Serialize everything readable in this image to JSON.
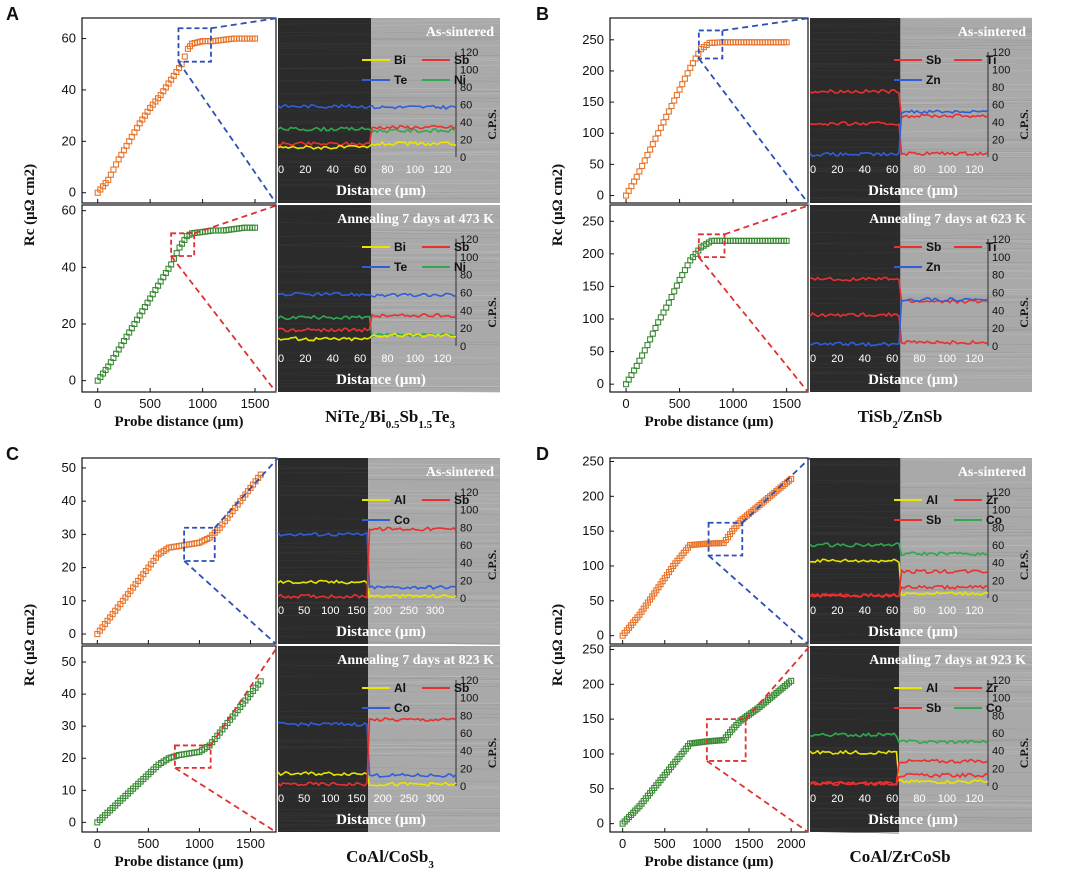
{
  "colors": {
    "as_sintered": "#e8742a",
    "annealed": "#3a8a35",
    "zoom_top": "#2e4fb5",
    "zoom_bottom": "#e03030",
    "Bi": "#e6e600",
    "Sb": "#e83030",
    "Te": "#2f5ed8",
    "Ni": "#2fa84f",
    "Ti": "#e83030",
    "Zn": "#2f5ed8",
    "Al": "#e6e600",
    "Co": "#2f5ed8",
    "Zr": "#e83030",
    "Co_green": "#2fa84f"
  },
  "chart_data": [
    {
      "panel": "A",
      "type": "scatter",
      "caption": "NiTe2/Bi0.5Sb1.5Te3",
      "xlabel": "Probe distance (μm)",
      "ylabel": "Rc (μΩ cm2)",
      "xlim": [
        -150,
        1700
      ],
      "xticks": [
        0,
        500,
        1000,
        1500
      ],
      "top": {
        "label": "As-sintered",
        "ylim": [
          -4,
          68
        ],
        "yticks": [
          0,
          20,
          40,
          60
        ],
        "points": [
          [
            0,
            0
          ],
          [
            100,
            5
          ],
          [
            200,
            13
          ],
          [
            300,
            20
          ],
          [
            400,
            27
          ],
          [
            500,
            33
          ],
          [
            600,
            38
          ],
          [
            700,
            44
          ],
          [
            800,
            50
          ],
          [
            860,
            56
          ],
          [
            900,
            58
          ],
          [
            1000,
            59
          ],
          [
            1100,
            59
          ],
          [
            1200,
            59.5
          ],
          [
            1300,
            60
          ],
          [
            1400,
            60
          ],
          [
            1500,
            60
          ]
        ],
        "zoom": [
          770,
          1080,
          51,
          64
        ],
        "map": {
          "x_max": 130,
          "xticks": [
            0,
            20,
            40,
            60,
            80,
            100,
            120
          ],
          "interface": 68,
          "cps_ticks": [
            0,
            20,
            40,
            60,
            80,
            100,
            120
          ],
          "legend": [
            "Bi",
            "Sb",
            "Te",
            "Ni"
          ],
          "lines": [
            {
              "el": "Te",
              "left": 58,
              "right": 57
            },
            {
              "el": "Ni",
              "left": 32,
              "right": 30
            },
            {
              "el": "Sb",
              "left": 15,
              "right": 34
            },
            {
              "el": "Bi",
              "left": 11,
              "right": 15
            }
          ]
        }
      },
      "bottom": {
        "label": "Annealing 7 days at 473 K",
        "ylim": [
          -4,
          62
        ],
        "yticks": [
          0,
          20,
          40,
          60
        ],
        "points": [
          [
            0,
            0
          ],
          [
            100,
            5
          ],
          [
            200,
            11
          ],
          [
            300,
            17
          ],
          [
            400,
            23
          ],
          [
            500,
            29
          ],
          [
            600,
            35
          ],
          [
            700,
            41
          ],
          [
            780,
            47
          ],
          [
            850,
            51
          ],
          [
            900,
            52
          ],
          [
            1000,
            52.5
          ],
          [
            1100,
            53
          ],
          [
            1200,
            53
          ],
          [
            1300,
            53.5
          ],
          [
            1400,
            54
          ],
          [
            1500,
            54
          ]
        ],
        "zoom": [
          700,
          920,
          44,
          52
        ],
        "map": {
          "x_max": 130,
          "xticks": [
            0,
            20,
            40,
            60,
            80,
            100,
            120
          ],
          "interface": 68,
          "cps_ticks": [
            0,
            20,
            40,
            60,
            80,
            100,
            120
          ],
          "legend": [
            "Bi",
            "Sb",
            "Te",
            "Ni"
          ],
          "lines": [
            {
              "el": "Te",
              "left": 58,
              "right": 57
            },
            {
              "el": "Ni",
              "left": 32,
              "right": 12
            },
            {
              "el": "Sb",
              "left": 18,
              "right": 34
            },
            {
              "el": "Bi",
              "left": 8,
              "right": 12
            }
          ]
        }
      }
    },
    {
      "panel": "B",
      "type": "scatter",
      "caption": "TiSb2/ZnSb",
      "xlabel": "Probe distance (μm)",
      "ylabel": "Rc (μΩ cm2)",
      "xlim": [
        -150,
        1700
      ],
      "xticks": [
        0,
        500,
        1000,
        1500
      ],
      "top": {
        "label": "As-sintered",
        "ylim": [
          -12,
          285
        ],
        "yticks": [
          0,
          50,
          100,
          150,
          200,
          250
        ],
        "points": [
          [
            0,
            0
          ],
          [
            100,
            30
          ],
          [
            200,
            65
          ],
          [
            300,
            100
          ],
          [
            400,
            135
          ],
          [
            500,
            170
          ],
          [
            600,
            205
          ],
          [
            700,
            235
          ],
          [
            780,
            245
          ],
          [
            900,
            246
          ],
          [
            1000,
            246
          ],
          [
            1100,
            246
          ],
          [
            1200,
            246
          ],
          [
            1300,
            246
          ],
          [
            1400,
            246
          ],
          [
            1500,
            246
          ]
        ],
        "zoom": [
          680,
          900,
          220,
          265
        ],
        "map": {
          "x_max": 130,
          "xticks": [
            0,
            20,
            40,
            60,
            80,
            100,
            120
          ],
          "interface": 66,
          "cps_ticks": [
            0,
            20,
            40,
            60,
            80,
            100,
            120
          ],
          "legend": [
            "Sb",
            "Ti",
            "Zn"
          ],
          "lines": [
            {
              "el": "Sb",
              "left": 75,
              "right": 47
            },
            {
              "el": "Ti",
              "left": 38,
              "right": 4
            },
            {
              "el": "Zn",
              "left": 3,
              "right": 52
            }
          ]
        }
      },
      "bottom": {
        "label": "Annealing 7 days at 623 K",
        "ylim": [
          -12,
          275
        ],
        "yticks": [
          0,
          50,
          100,
          150,
          200,
          250
        ],
        "points": [
          [
            0,
            0
          ],
          [
            100,
            28
          ],
          [
            200,
            60
          ],
          [
            300,
            95
          ],
          [
            400,
            125
          ],
          [
            500,
            160
          ],
          [
            600,
            190
          ],
          [
            700,
            210
          ],
          [
            800,
            220
          ],
          [
            900,
            220
          ],
          [
            1000,
            220
          ],
          [
            1100,
            220
          ],
          [
            1200,
            220
          ],
          [
            1300,
            220
          ],
          [
            1400,
            220
          ],
          [
            1500,
            220
          ]
        ],
        "zoom": [
          680,
          920,
          195,
          230
        ],
        "map": {
          "x_max": 130,
          "xticks": [
            0,
            20,
            40,
            60,
            80,
            100,
            120
          ],
          "interface": 66,
          "cps_ticks": [
            0,
            20,
            40,
            60,
            80,
            100,
            120
          ],
          "legend": [
            "Sb",
            "Ti",
            "Zn"
          ],
          "lines": [
            {
              "el": "Sb",
              "left": 75,
              "right": 50
            },
            {
              "el": "Ti",
              "left": 35,
              "right": 4
            },
            {
              "el": "Zn",
              "left": 2,
              "right": 52
            }
          ]
        }
      }
    },
    {
      "panel": "C",
      "type": "scatter",
      "caption": "CoAl/CoSb3",
      "xlabel": "Probe distance (μm)",
      "ylabel": "Rc (μΩ cm2)",
      "xlim": [
        -150,
        1750
      ],
      "xticks": [
        0,
        500,
        1000,
        1500
      ],
      "top": {
        "label": "As-sintered",
        "ylim": [
          -3,
          53
        ],
        "yticks": [
          0,
          10,
          20,
          30,
          40,
          50
        ],
        "points": [
          [
            0,
            0
          ],
          [
            100,
            4
          ],
          [
            200,
            8
          ],
          [
            300,
            12
          ],
          [
            400,
            16
          ],
          [
            500,
            20
          ],
          [
            600,
            24
          ],
          [
            700,
            26
          ],
          [
            800,
            26.5
          ],
          [
            900,
            27
          ],
          [
            1000,
            27.5
          ],
          [
            1100,
            29
          ],
          [
            1200,
            32
          ],
          [
            1300,
            36
          ],
          [
            1400,
            40
          ],
          [
            1500,
            44
          ],
          [
            1600,
            48
          ]
        ],
        "zoom": [
          850,
          1150,
          22,
          32
        ],
        "map": {
          "x_max": 340,
          "xticks": [
            0,
            50,
            100,
            150,
            200,
            250,
            300
          ],
          "interface": 172,
          "cps_ticks": [
            0,
            20,
            40,
            60,
            80,
            100,
            120
          ],
          "legend": [
            "Al",
            "Sb",
            "Co"
          ],
          "lines": [
            {
              "el": "Co",
              "left": 72,
              "right": 12
            },
            {
              "el": "Al",
              "left": 18,
              "right": 2
            },
            {
              "el": "Sb",
              "left": 2,
              "right": 78
            }
          ]
        }
      },
      "bottom": {
        "label": "Annealing 7 days at 823 K",
        "ylim": [
          -3,
          55
        ],
        "yticks": [
          0,
          10,
          20,
          30,
          40,
          50
        ],
        "points": [
          [
            0,
            0
          ],
          [
            100,
            3
          ],
          [
            200,
            6
          ],
          [
            300,
            9
          ],
          [
            400,
            12
          ],
          [
            500,
            15
          ],
          [
            600,
            18
          ],
          [
            700,
            20
          ],
          [
            800,
            21
          ],
          [
            900,
            21.5
          ],
          [
            1000,
            22
          ],
          [
            1100,
            24
          ],
          [
            1200,
            28
          ],
          [
            1300,
            32
          ],
          [
            1400,
            36
          ],
          [
            1500,
            40
          ],
          [
            1600,
            44
          ]
        ],
        "zoom": [
          760,
          1110,
          17,
          24
        ],
        "map": {
          "x_max": 340,
          "xticks": [
            0,
            50,
            100,
            150,
            200,
            250,
            300
          ],
          "interface": 172,
          "cps_ticks": [
            0,
            20,
            40,
            60,
            80,
            100,
            120
          ],
          "legend": [
            "Al",
            "Sb",
            "Co"
          ],
          "lines": [
            {
              "el": "Co",
              "left": 70,
              "right": 12
            },
            {
              "el": "Al",
              "left": 14,
              "right": 2
            },
            {
              "el": "Sb",
              "left": 2,
              "right": 75
            }
          ]
        }
      }
    },
    {
      "panel": "D",
      "type": "scatter",
      "caption": "CoAl/ZrCoSb",
      "xlabel": "Probe distance (μm)",
      "ylabel": "Rc (μΩ cm2)",
      "xlim": [
        -150,
        2200
      ],
      "xticks": [
        0,
        500,
        1000,
        1500,
        2000
      ],
      "top": {
        "label": "As-sintered",
        "ylim": [
          -12,
          255
        ],
        "yticks": [
          0,
          50,
          100,
          150,
          200,
          250
        ],
        "points": [
          [
            0,
            0
          ],
          [
            200,
            30
          ],
          [
            400,
            65
          ],
          [
            600,
            100
          ],
          [
            800,
            130
          ],
          [
            1000,
            132
          ],
          [
            1200,
            133
          ],
          [
            1300,
            150
          ],
          [
            1400,
            165
          ],
          [
            1600,
            185
          ],
          [
            1800,
            205
          ],
          [
            2000,
            225
          ]
        ],
        "zoom": [
          1020,
          1420,
          115,
          162
        ],
        "map": {
          "x_max": 130,
          "xticks": [
            0,
            20,
            40,
            60,
            80,
            100,
            120
          ],
          "interface": 66,
          "cps_ticks": [
            0,
            20,
            40,
            60,
            80,
            100,
            120
          ],
          "legend": [
            "Al",
            "Zr",
            "Sb",
            "Co"
          ],
          "lines": [
            {
              "el": "Co_green",
              "left": 60,
              "right": 50
            },
            {
              "el": "Al",
              "left": 42,
              "right": 5
            },
            {
              "el": "Sb",
              "left": 3,
              "right": 30
            },
            {
              "el": "Zr",
              "left": 3,
              "right": 12
            }
          ]
        }
      },
      "bottom": {
        "label": "Annealing 7 days at 923 K",
        "ylim": [
          -12,
          255
        ],
        "yticks": [
          0,
          50,
          100,
          150,
          200,
          250
        ],
        "points": [
          [
            0,
            0
          ],
          [
            200,
            25
          ],
          [
            400,
            55
          ],
          [
            600,
            85
          ],
          [
            800,
            115
          ],
          [
            1000,
            118
          ],
          [
            1200,
            120
          ],
          [
            1300,
            135
          ],
          [
            1400,
            148
          ],
          [
            1600,
            165
          ],
          [
            1800,
            185
          ],
          [
            2000,
            205
          ]
        ],
        "zoom": [
          1000,
          1460,
          90,
          150
        ],
        "map": {
          "x_max": 130,
          "xticks": [
            0,
            20,
            40,
            60,
            80,
            100,
            120
          ],
          "interface": 65,
          "cps_ticks": [
            0,
            20,
            40,
            60,
            80,
            100,
            120
          ],
          "legend": [
            "Al",
            "Zr",
            "Sb",
            "Co"
          ],
          "lines": [
            {
              "el": "Co_green",
              "left": 58,
              "right": 50
            },
            {
              "el": "Al",
              "left": 38,
              "right": 5
            },
            {
              "el": "Sb",
              "left": 3,
              "right": 28
            },
            {
              "el": "Zr",
              "left": 3,
              "right": 12
            }
          ]
        }
      }
    }
  ],
  "labels": {
    "cps": "C.P.S.",
    "map_xlabel": "Distance (μm)"
  }
}
